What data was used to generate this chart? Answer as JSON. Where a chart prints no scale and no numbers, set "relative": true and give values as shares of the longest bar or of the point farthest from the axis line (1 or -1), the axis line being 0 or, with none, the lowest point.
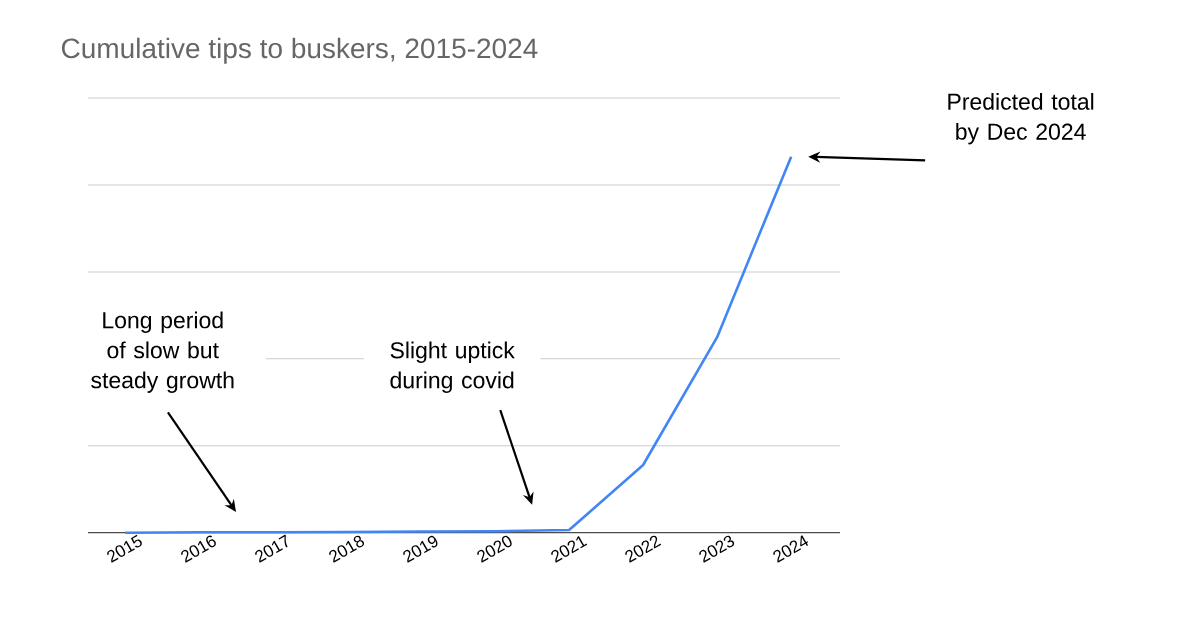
{
  "chart_data": {
    "type": "line",
    "title": "Cumulative tips to buskers, 2015-2024",
    "categories": [
      "2015",
      "2016",
      "2017",
      "2018",
      "2019",
      "2020",
      "2021",
      "2022",
      "2023",
      "2024"
    ],
    "values": [
      0,
      0.001,
      0.001,
      0.002,
      0.003,
      0.004,
      0.007,
      0.18,
      0.52,
      1
    ],
    "color": "#4285f4",
    "relative": true,
    "grid": "y",
    "marker": "none",
    "line_style": "solid",
    "annotations": [
      "Predicted total by Dec 2024",
      "Long period of slow but steady growth",
      "Slight uptick during covid"
    ]
  }
}
